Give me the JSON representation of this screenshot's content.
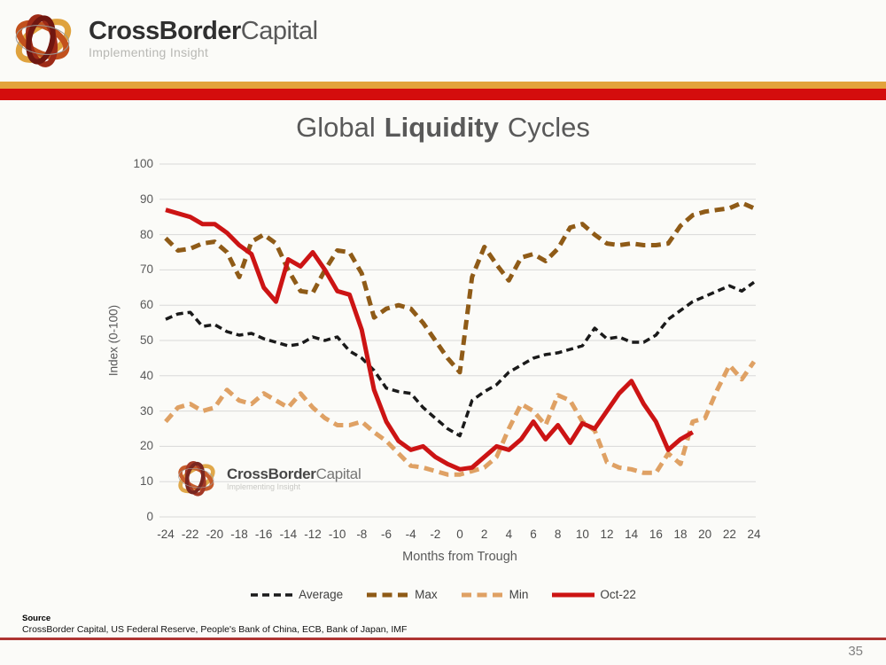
{
  "page": {
    "background": "#fbfbf8",
    "page_number": "35"
  },
  "header": {
    "brand_bold": "CrossBorder",
    "brand_regular": "Capital",
    "tagline": "Implementing Insight",
    "stripe_gold_color": "#E3A33C",
    "stripe_red_color": "#D40D0D"
  },
  "title": {
    "pre": "Global",
    "bold": "Liquidity",
    "post": "Cycles"
  },
  "footer": {
    "source_label": "Source",
    "source_text": "CrossBorder Capital, US Federal Reserve, People's Bank of China, ECB, Bank of Japan, IMF",
    "rule_color": "#AE3432"
  },
  "chart_data": {
    "type": "line",
    "title": "Global Liquidity Cycles",
    "xlabel": "Months from Trough",
    "ylabel": "Index (0-100)",
    "xlim": [
      -24,
      24
    ],
    "ylim": [
      0,
      100
    ],
    "grid": true,
    "gridline_color": "#d9d9d9",
    "legend_position": "bottom",
    "xticks": [
      -24,
      -22,
      -20,
      -18,
      -16,
      -14,
      -12,
      -10,
      -8,
      -6,
      -4,
      -2,
      0,
      2,
      4,
      6,
      8,
      10,
      12,
      14,
      16,
      18,
      20,
      22,
      24
    ],
    "yticks": [
      0,
      10,
      20,
      30,
      40,
      50,
      60,
      70,
      80,
      90,
      100
    ],
    "x": [
      -24,
      -23,
      -22,
      -21,
      -20,
      -19,
      -18,
      -17,
      -16,
      -15,
      -14,
      -13,
      -12,
      -11,
      -10,
      -9,
      -8,
      -7,
      -6,
      -5,
      -4,
      -3,
      -2,
      -1,
      0,
      1,
      2,
      3,
      4,
      5,
      6,
      7,
      8,
      9,
      10,
      11,
      12,
      13,
      14,
      15,
      16,
      17,
      18,
      19,
      20,
      21,
      22,
      23,
      24
    ],
    "series": [
      {
        "name": "Average",
        "color": "#1a1a1a",
        "style": "dashed",
        "width": 3.5,
        "dash": "8 5",
        "values": [
          56,
          57.5,
          58,
          54,
          54.5,
          52.5,
          51.5,
          52,
          50.5,
          49.5,
          48.5,
          49,
          51,
          50,
          51,
          47,
          45,
          41.5,
          36.5,
          35.5,
          35,
          31,
          28,
          25,
          23,
          33,
          35.5,
          37.5,
          41,
          43,
          45,
          46,
          46.5,
          47.5,
          48.5,
          53.5,
          50.5,
          51,
          49.5,
          49.5,
          51.5,
          56,
          58.5,
          61,
          62.5,
          64,
          65.5,
          64,
          66.5
        ]
      },
      {
        "name": "Max",
        "color": "#8F5B17",
        "style": "dashed",
        "width": 5,
        "dash": "11 6.5",
        "values": [
          79,
          75.5,
          76,
          77.5,
          78,
          75,
          68,
          78,
          80,
          77.5,
          70,
          64,
          63.5,
          70,
          75.5,
          75,
          69,
          56.5,
          59,
          60,
          59,
          55,
          50,
          45,
          41,
          68,
          76.5,
          71.5,
          67,
          73.5,
          74.5,
          72.5,
          76,
          82,
          83,
          80,
          77.5,
          77,
          77.5,
          77,
          77,
          77.5,
          82.5,
          85.5,
          86.5,
          87,
          87.5,
          89,
          87.5
        ]
      },
      {
        "name": "Min",
        "color": "#DFA164",
        "style": "dashed",
        "width": 5,
        "dash": "11 6.5",
        "values": [
          27,
          31,
          32,
          30,
          31,
          36,
          33,
          32,
          35,
          33,
          31,
          35,
          31,
          28,
          26,
          26,
          27,
          24,
          21.5,
          18,
          14.5,
          14,
          13,
          12,
          12,
          13,
          14,
          17,
          25,
          32,
          30,
          26,
          34.5,
          33,
          27,
          24.5,
          15.5,
          14,
          13.5,
          12.5,
          12.5,
          18,
          15,
          27,
          28,
          36,
          43,
          39,
          44
        ]
      },
      {
        "name": "Oct-22",
        "color": "#CC1414",
        "style": "solid",
        "width": 5,
        "dash": "",
        "values": [
          87,
          86,
          85,
          83,
          83,
          80.5,
          77,
          74.5,
          65,
          61,
          73,
          71,
          75,
          70,
          64,
          63,
          53,
          36,
          27,
          21.5,
          19,
          20,
          17,
          15,
          13.5,
          14,
          17,
          20,
          19,
          22,
          27,
          22,
          26,
          21,
          26.5,
          25,
          30,
          35,
          38.5,
          32,
          27,
          19,
          22,
          24
        ]
      }
    ]
  }
}
